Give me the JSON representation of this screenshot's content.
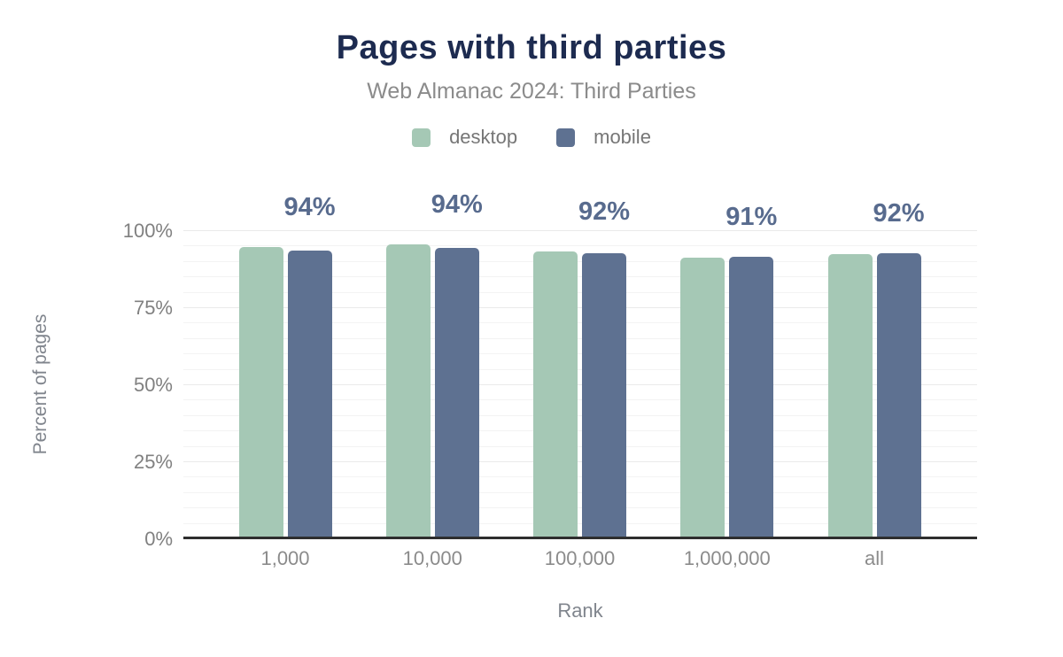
{
  "chart_data": {
    "type": "bar",
    "title": "Pages with third parties",
    "subtitle": "Web Almanac 2024: Third Parties",
    "xlabel": "Rank",
    "ylabel": "Percent of pages",
    "categories": [
      "1,000",
      "10,000",
      "100,000",
      "1,000,000",
      "all"
    ],
    "series": [
      {
        "name": "desktop",
        "color": "#a5c8b5",
        "values": [
          94.6,
          95.3,
          93.0,
          91.2,
          92.3
        ]
      },
      {
        "name": "mobile",
        "color": "#5e7191",
        "values": [
          93.5,
          94.2,
          92.4,
          91.4,
          92.4
        ]
      }
    ],
    "bar_labels": [
      "94%",
      "94%",
      "92%",
      "91%",
      "92%"
    ],
    "y_ticks": [
      "0%",
      "25%",
      "50%",
      "75%",
      "100%"
    ],
    "ylim": [
      0,
      100
    ],
    "grid": {
      "minor_step_pct": 5,
      "major_step_pct": 25
    },
    "legend_position": "top"
  },
  "colors": {
    "title": "#1d2b50",
    "subtitle": "#8b8b8b",
    "data_label": "#586b8e",
    "axis_line": "#2e2e2e",
    "tick_label": "#808080"
  }
}
